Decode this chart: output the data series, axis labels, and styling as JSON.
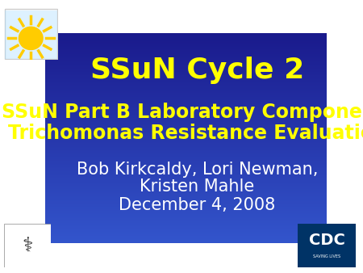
{
  "background_color_top": "#1a1a8c",
  "background_color_bottom": "#3355cc",
  "title": "SSuN Cycle 2",
  "title_color": "#ffff00",
  "title_fontsize": 26,
  "subtitle_line1": "SSuN Part B Laboratory Component:",
  "subtitle_line2": "Trichomonas Resistance Evaluation",
  "subtitle_color": "#ffff00",
  "subtitle_fontsize": 17,
  "author_line1": "Bob Kirkcaldy, Lori Newman,",
  "author_line2": "Kristen Mahle",
  "author_color": "#ffffff",
  "author_fontsize": 15,
  "date": "December 4, 2008",
  "date_color": "#ffffff",
  "date_fontsize": 15
}
